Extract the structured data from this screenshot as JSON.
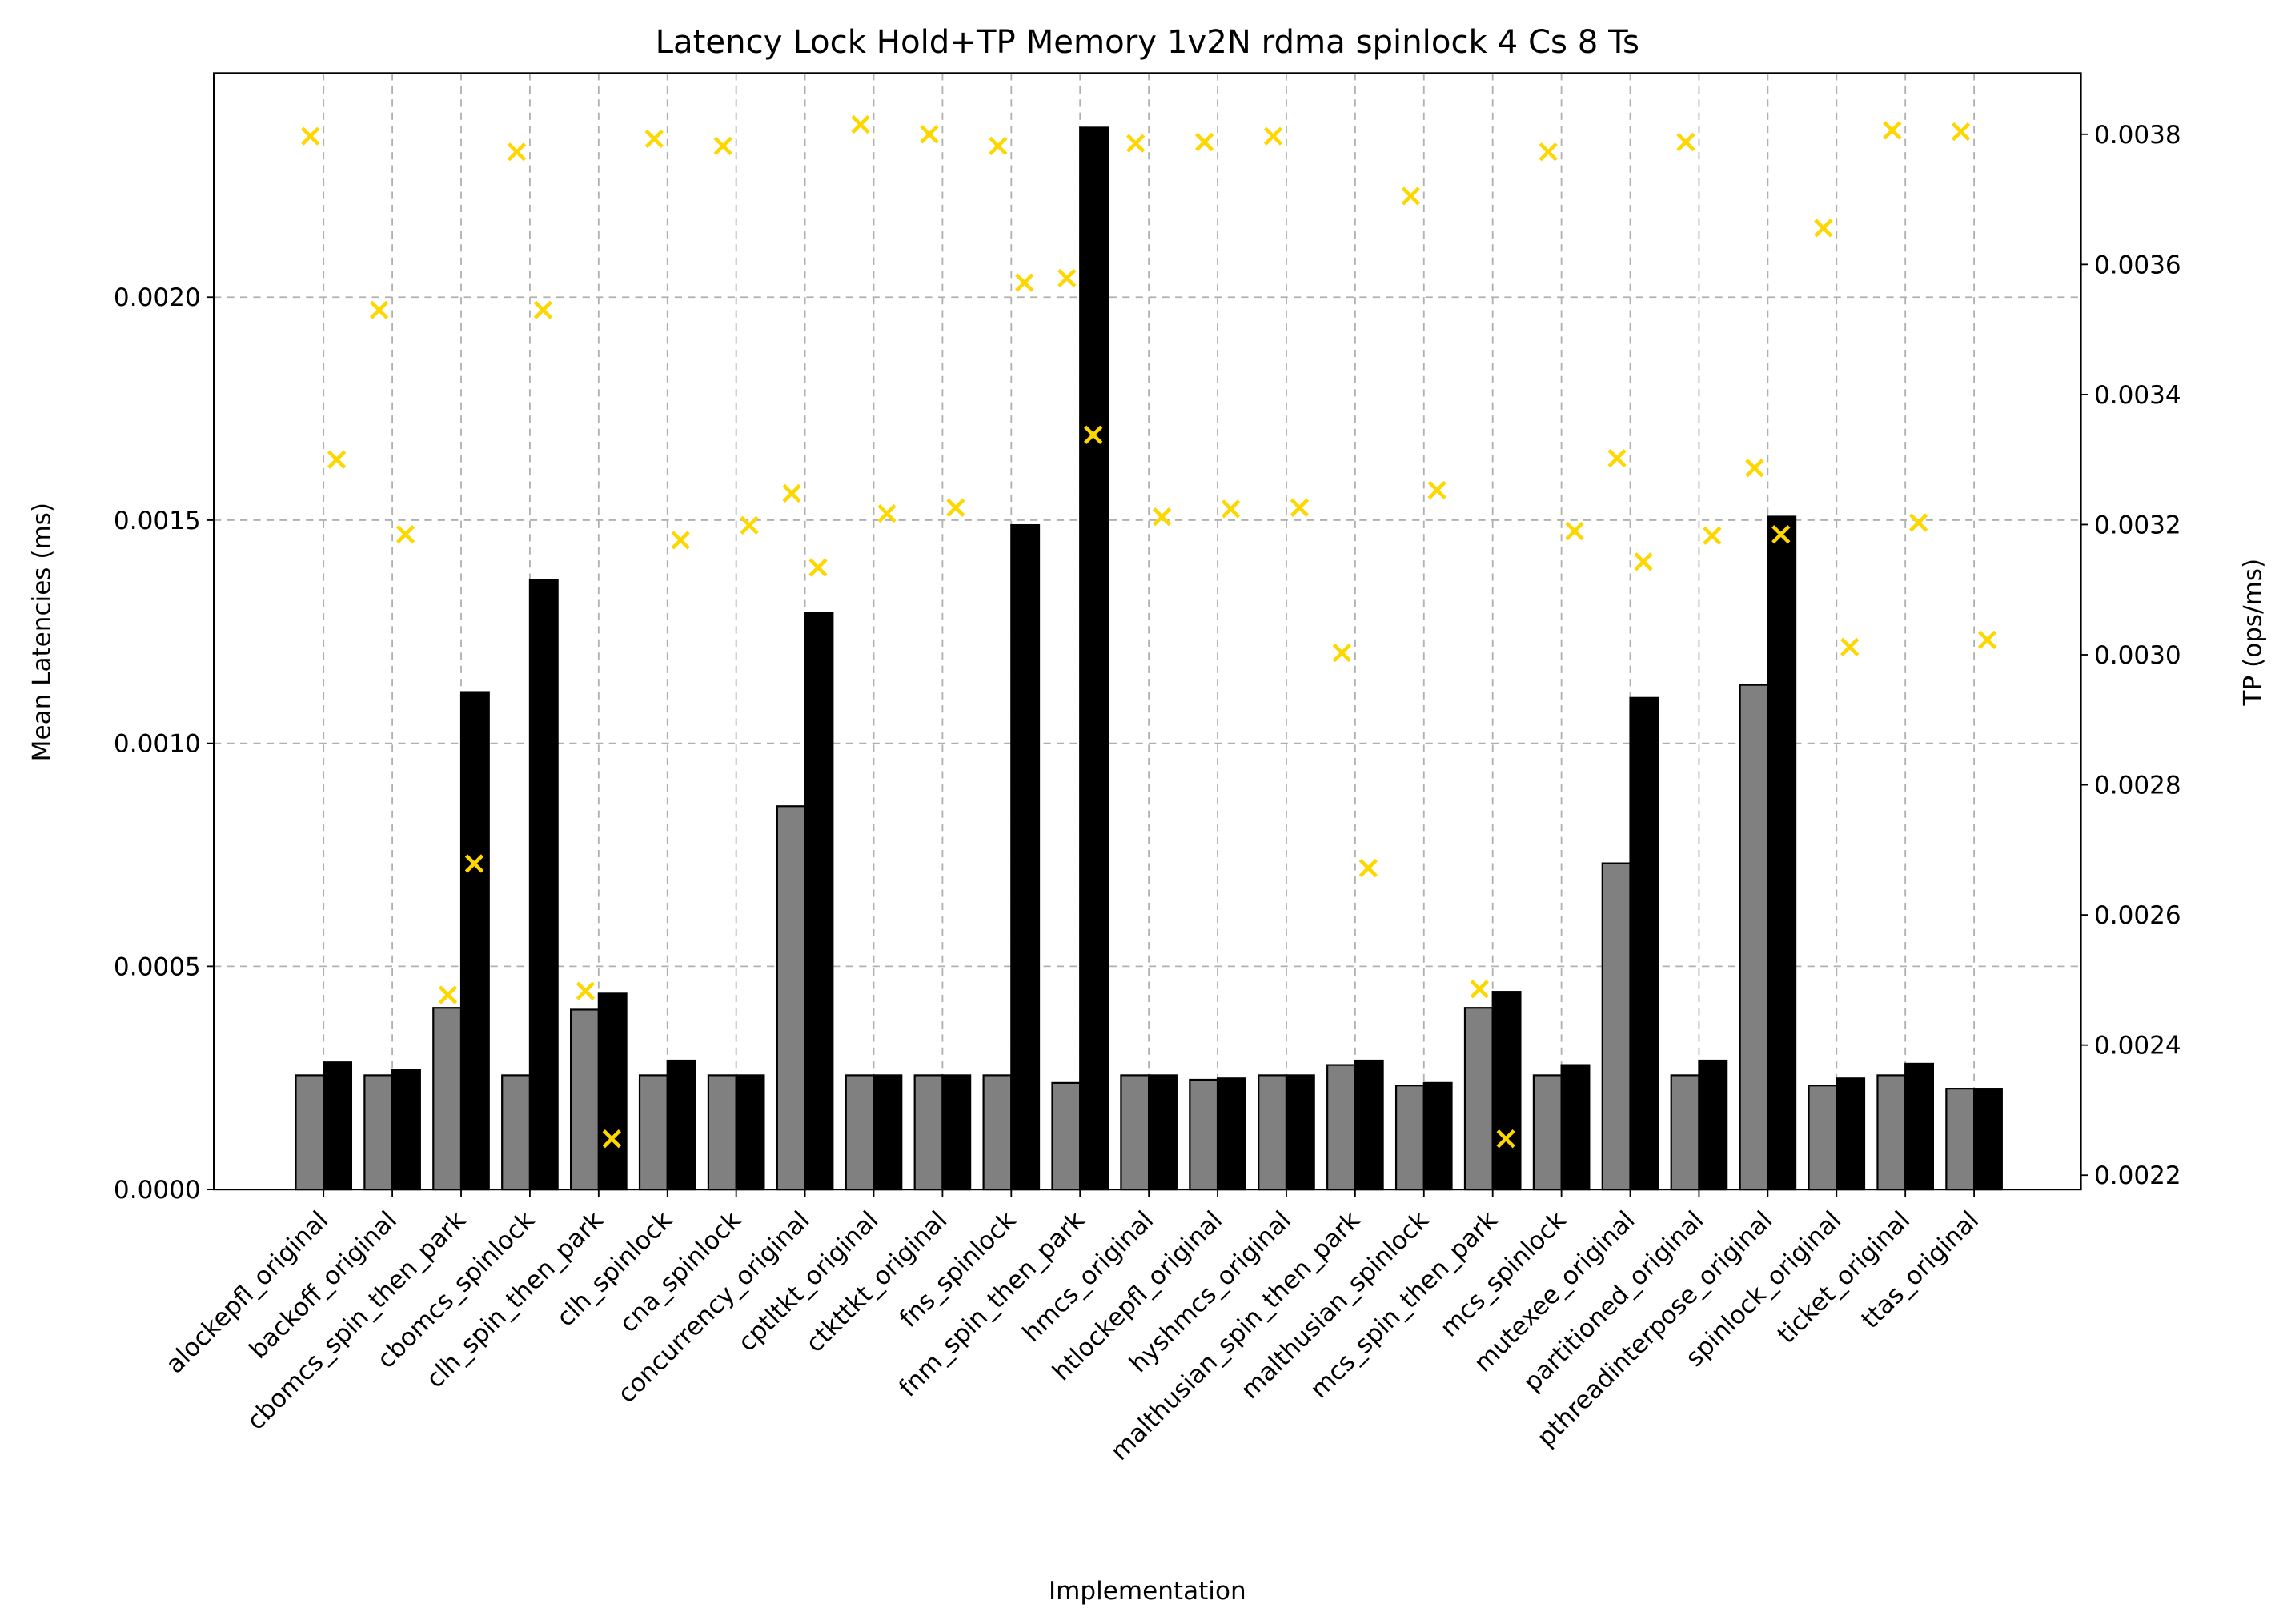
{
  "chart_data": {
    "type": "bar",
    "title": "Latency Lock Hold+TP Memory 1v2N rdma spinlock 4 Cs 8 Ts",
    "xlabel": "Implementation",
    "ylabel": "Mean Latencies (ms)",
    "y2label": "TP (ops/ms)",
    "categories": [
      "alockepfl_original",
      "backoff_original",
      "cbomcs_spin_then_park",
      "cbomcs_spinlock",
      "clh_spin_then_park",
      "clh_spinlock",
      "cna_spinlock",
      "concurrency_original",
      "cptltkt_original",
      "ctkttkt_original",
      "fns_spinlock",
      "fnm_spin_then_park",
      "hmcs_original",
      "htlockepfl_original",
      "hyshmcs_original",
      "malthusian_spin_then_park",
      "malthusian_spinlock",
      "mcs_spin_then_park",
      "mcs_spinlock",
      "mutexee_original",
      "partitioned_original",
      "pthreadinterpose_original",
      "spinlock_original",
      "ticket_original",
      "ttas_original"
    ],
    "series": [
      {
        "type": "bar",
        "color": "#808080",
        "values": [
          0.000256,
          0.000256,
          0.000407,
          0.000256,
          0.000403,
          0.000256,
          0.000256,
          0.000859,
          0.000256,
          0.000256,
          0.000256,
          0.000239,
          0.000256,
          0.000246,
          0.000256,
          0.000279,
          0.000233,
          0.000407,
          0.000256,
          0.000731,
          0.000256,
          0.001131,
          0.000233,
          0.000256,
          0.000226
        ]
      },
      {
        "type": "bar",
        "color": "#000000",
        "values": [
          0.000285,
          0.000269,
          0.001115,
          0.001367,
          0.000439,
          0.000289,
          0.000256,
          0.001292,
          0.000256,
          0.000256,
          0.001489,
          0.00238,
          0.000256,
          0.000249,
          0.000256,
          0.000289,
          0.000239,
          0.000443,
          0.000279,
          0.001102,
          0.000289,
          0.001508,
          0.000249,
          0.000282,
          0.000226
        ]
      },
      {
        "type": "scatter",
        "axis": "y2",
        "color": "#ffd700",
        "values": [
          0.003797,
          0.00353,
          0.002477,
          0.003773,
          0.002483,
          0.003793,
          0.003782,
          0.003248,
          0.003815,
          0.0038,
          0.003782,
          0.003579,
          0.003786,
          0.003788,
          0.003797,
          0.003003,
          0.003705,
          0.002486,
          0.003773,
          0.003302,
          0.003788,
          0.003287,
          0.003656,
          0.003806,
          0.003804
        ]
      },
      {
        "type": "scatter",
        "axis": "y2",
        "color": "#ffd700",
        "values": [
          0.0033,
          0.003185,
          0.002679,
          0.00353,
          0.002256,
          0.003176,
          0.003199,
          0.003134,
          0.003217,
          0.003226,
          0.003572,
          0.003338,
          0.003212,
          0.003224,
          0.003226,
          0.002672,
          0.003253,
          0.002256,
          0.00319,
          0.003143,
          0.003183,
          0.003185,
          0.003012,
          0.003203,
          0.003023
        ]
      }
    ],
    "ylim": [
      0,
      0.002502
    ],
    "yticks": [
      {
        "value": 0,
        "label": "0.0000"
      },
      0.0005,
      {
        "value": 0.001,
        "label": "0.0010"
      },
      0.0015,
      {
        "value": 0.002,
        "label": "0.0020"
      }
    ],
    "y2lim": [
      0.002178,
      0.003894
    ],
    "y2ticks": [
      0.0022,
      0.0024,
      0.0026,
      0.0028,
      {
        "value": 0.003,
        "label": "0.0030"
      },
      0.0032,
      0.0034,
      0.0036,
      0.0038
    ],
    "grid": true
  }
}
